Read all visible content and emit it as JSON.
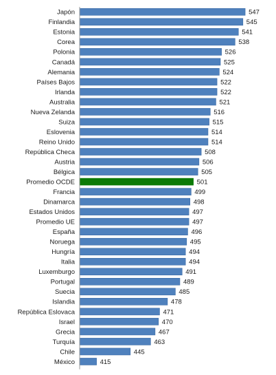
{
  "chart_data": {
    "type": "bar",
    "orientation": "horizontal",
    "title": "",
    "xlabel": "",
    "ylabel": "",
    "xlim": [
      400,
      550
    ],
    "grid": false,
    "legend": "none",
    "colors": {
      "default": "#4f81bd",
      "highlight": "#0c7a06",
      "bar_stroke": "#3a6aa5"
    },
    "highlight_category": "Promedio OCDE",
    "categories": [
      "Japón",
      "Finlandia",
      "Estonia",
      "Corea",
      "Polonia",
      "Canadá",
      "Alemania",
      "Países Bajos",
      "Irlanda",
      "Australia",
      "Nueva Zelanda",
      "Suiza",
      "Eslovenia",
      "Reino Unido",
      "República Checa",
      "Austria",
      "Bélgica",
      "Promedio OCDE",
      "Francia",
      "Dinamarca",
      "Estados Unidos",
      "Promedio UE",
      "España",
      "Noruega",
      "Hungría",
      "Italia",
      "Luxemburgo",
      "Portugal",
      "Suecia",
      "Islandia",
      "República Eslovaca",
      "Israel",
      "Grecia",
      "Turquía",
      "Chile",
      "México"
    ],
    "values": [
      547,
      545,
      541,
      538,
      526,
      525,
      524,
      522,
      522,
      521,
      516,
      515,
      514,
      514,
      508,
      506,
      505,
      501,
      499,
      498,
      497,
      497,
      496,
      495,
      494,
      494,
      491,
      489,
      485,
      478,
      471,
      470,
      467,
      463,
      445,
      415
    ],
    "value_labels": [
      "547",
      "545",
      "541",
      "538",
      "526",
      "525",
      "524",
      "522",
      "522",
      "521",
      "516",
      "515",
      "514",
      "514",
      "508",
      "506",
      "505",
      "501",
      "499",
      "498",
      "497",
      "497",
      "496",
      "495",
      "494",
      "494",
      "491",
      "489",
      "485",
      "478",
      "471",
      "470",
      "467",
      "463",
      "445",
      "415"
    ]
  }
}
